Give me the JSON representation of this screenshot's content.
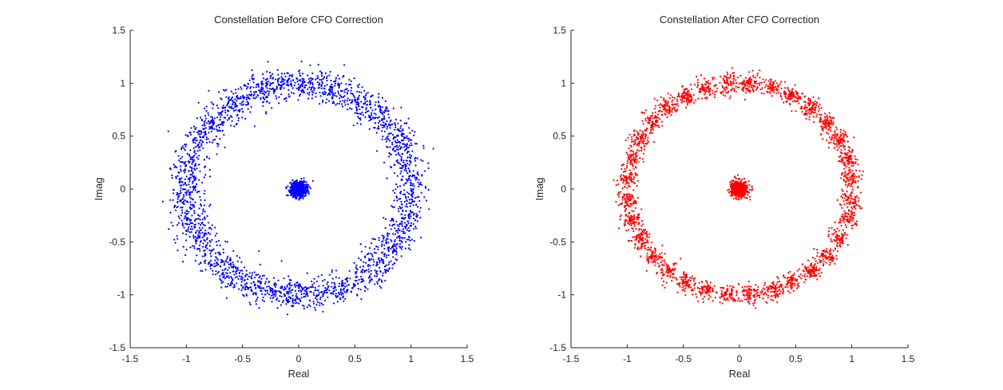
{
  "chart_data": [
    {
      "type": "scatter",
      "title": "Constellation Before CFO Correction",
      "xlabel": "Real",
      "ylabel": "Imag",
      "xlim": [
        -1.5,
        1.5
      ],
      "ylim": [
        -1.5,
        1.5
      ],
      "xticks": [
        "-1.5",
        "-1",
        "-0.5",
        "0",
        "0.5",
        "1",
        "1.5"
      ],
      "yticks": [
        "-1.5",
        "-1",
        "-0.5",
        "0",
        "0.5",
        "1",
        "1.5"
      ],
      "grid": false,
      "color": "#0000ff",
      "series": [
        {
          "pattern": "continuous-ring",
          "ring_radius": 1.0,
          "ring_spread": 0.075,
          "ring_points": 2600,
          "center": [
            0,
            0
          ],
          "center_spread": 0.035,
          "center_points": 700
        }
      ]
    },
    {
      "type": "scatter",
      "title": "Constellation After CFO Correction",
      "xlabel": "Real",
      "ylabel": "Imag",
      "xlim": [
        -1.5,
        1.5
      ],
      "ylim": [
        -1.5,
        1.5
      ],
      "xticks": [
        "-1.5",
        "-1",
        "-0.5",
        "0",
        "0.5",
        "1",
        "1.5"
      ],
      "yticks": [
        "-1.5",
        "-1",
        "-0.5",
        "0",
        "0.5",
        "1",
        "1.5"
      ],
      "grid": false,
      "color": "#ff0000",
      "series": [
        {
          "pattern": "clustered-ring",
          "ring_radius": 1.0,
          "cluster_count": 32,
          "cluster_spread": 0.045,
          "ring_points": 2600,
          "center": [
            0,
            0
          ],
          "center_spread": 0.035,
          "center_points": 700
        }
      ]
    }
  ]
}
